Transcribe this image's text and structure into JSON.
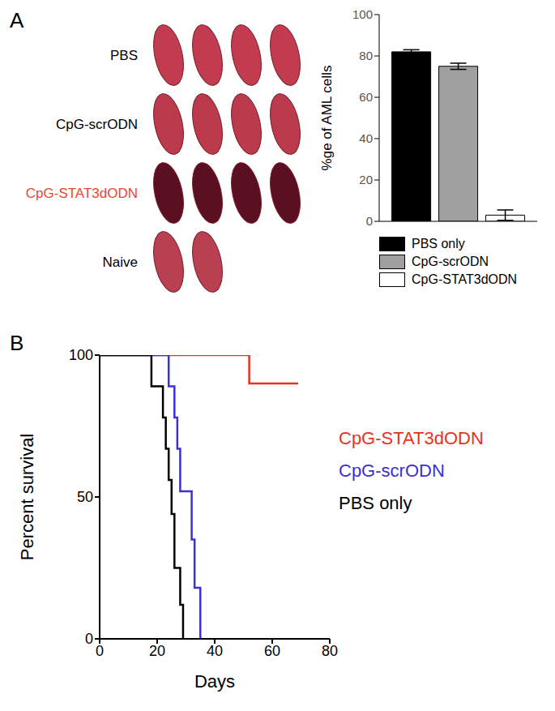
{
  "photo_panel": {
    "panel": "A",
    "rows": [
      {
        "label": "PBS",
        "count": 4,
        "color": "#c23b4e",
        "label_color": "#000000"
      },
      {
        "label": "CpG-scrODN",
        "count": 4,
        "color": "#bb3a4c",
        "label_color": "#000000"
      },
      {
        "label": "CpG-STAT3dODN",
        "count": 4,
        "color": "#5a1020",
        "label_color": "#e8472b"
      },
      {
        "label": "Naive",
        "count": 2,
        "color": "#b84050",
        "label_color": "#000000"
      }
    ]
  },
  "chart_data": [
    {
      "type": "bar",
      "y_label": "%ge of AML cells",
      "categories": [
        null
      ],
      "series": [
        {
          "name": "PBS only",
          "color": "#000000",
          "values": [
            82
          ],
          "error": [
            1
          ]
        },
        {
          "name": "CpG-scrODN",
          "color": "#a0a0a0",
          "values": [
            75
          ],
          "error": [
            1.5
          ]
        },
        {
          "name": "CpG-STAT3dODN",
          "color": "#ffffff",
          "values": [
            3
          ],
          "error": [
            2.5
          ]
        }
      ],
      "ylim": [
        0,
        100
      ],
      "yticks": [
        0,
        20,
        40,
        60,
        80,
        100
      ],
      "tick_labels": "y",
      "legend": "bottom"
    },
    {
      "type": "line",
      "panel": "B",
      "x_label": "Days",
      "y_label": "Percent survival",
      "line_style": "step",
      "series": [
        {
          "name": "CpG-STAT3dODN",
          "color": "#e8321e",
          "x": [
            0,
            52,
            69
          ],
          "values": [
            100,
            90,
            90
          ]
        },
        {
          "name": "CpG-scrODN",
          "color": "#3c2fd8",
          "x": [
            0,
            24,
            26,
            27,
            28,
            32,
            33,
            35
          ],
          "values": [
            100,
            89,
            78,
            67,
            52,
            35,
            18,
            0
          ]
        },
        {
          "name": "PBS only",
          "color": "#000000",
          "x": [
            0,
            18,
            22,
            23,
            24,
            25,
            26,
            28,
            29
          ],
          "values": [
            100,
            89,
            78,
            67,
            56,
            44,
            25,
            12,
            0
          ]
        }
      ],
      "xlim": [
        0,
        80
      ],
      "ylim": [
        0,
        100
      ],
      "xticks": [
        0,
        20,
        40,
        60,
        80
      ],
      "yticks": [
        0,
        50,
        100
      ],
      "legend": "right"
    }
  ]
}
